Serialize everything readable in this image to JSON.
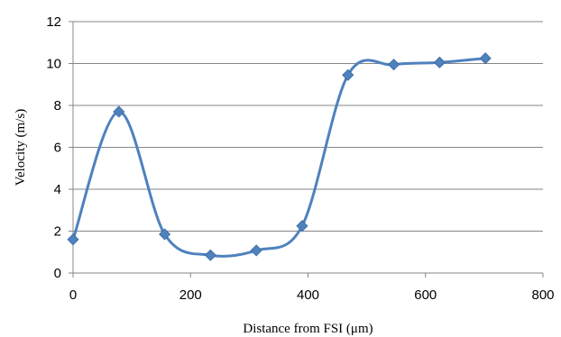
{
  "chart_data": {
    "type": "line",
    "title": "",
    "xlabel": "Distance from FSI (μm)",
    "ylabel": "Velocity (m/s)",
    "xlim": [
      0,
      800
    ],
    "ylim": [
      0,
      12
    ],
    "x_ticks": [
      0,
      200,
      400,
      600,
      800
    ],
    "y_ticks": [
      0,
      2,
      4,
      6,
      8,
      10,
      12
    ],
    "grid": "horizontal",
    "legend": "none",
    "smooth": true,
    "marker": "diamond",
    "color": "#4f81bd",
    "series": [
      {
        "x": [
          0,
          78,
          156,
          234,
          312,
          390,
          468,
          546,
          624,
          702
        ],
        "y": [
          1.6,
          7.7,
          1.85,
          0.85,
          1.08,
          2.25,
          9.45,
          9.95,
          10.05,
          10.25
        ]
      }
    ]
  }
}
